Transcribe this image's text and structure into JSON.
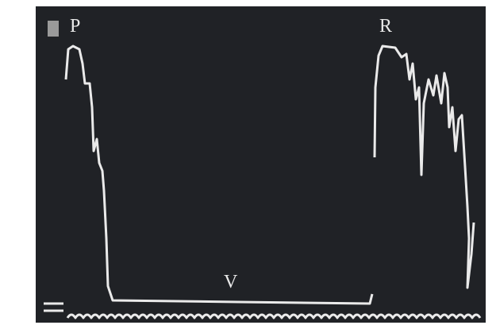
{
  "labels": {
    "p": "P",
    "r": "R",
    "v": "V"
  }
}
